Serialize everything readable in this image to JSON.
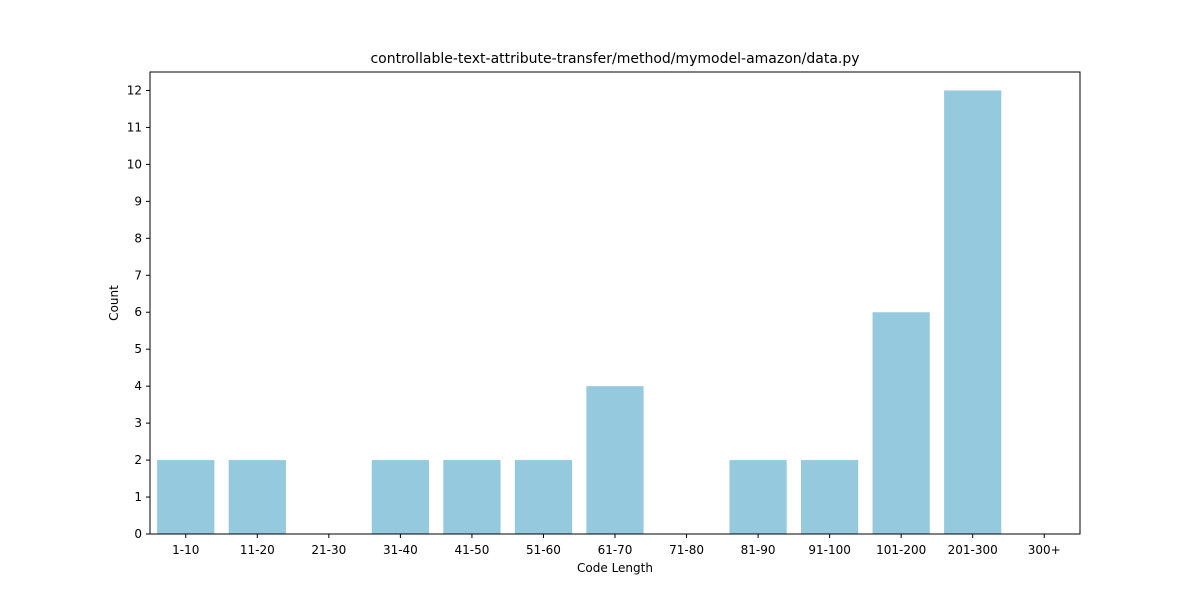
{
  "chart_data": {
    "type": "bar",
    "title": "controllable-text-attribute-transfer/method/mymodel-amazon/data.py",
    "xlabel": "Code Length",
    "ylabel": "Count",
    "categories": [
      "1-10",
      "11-20",
      "21-30",
      "31-40",
      "41-50",
      "51-60",
      "61-70",
      "71-80",
      "81-90",
      "91-100",
      "101-200",
      "201-300",
      "300+"
    ],
    "values": [
      2,
      2,
      0,
      2,
      2,
      2,
      4,
      0,
      2,
      2,
      6,
      12,
      0
    ],
    "ylim": [
      0,
      12.5
    ],
    "yticks": [
      0,
      1,
      2,
      3,
      4,
      5,
      6,
      7,
      8,
      9,
      10,
      11,
      12
    ],
    "bar_color": "#95c9de",
    "grid": false,
    "legend": "none"
  }
}
